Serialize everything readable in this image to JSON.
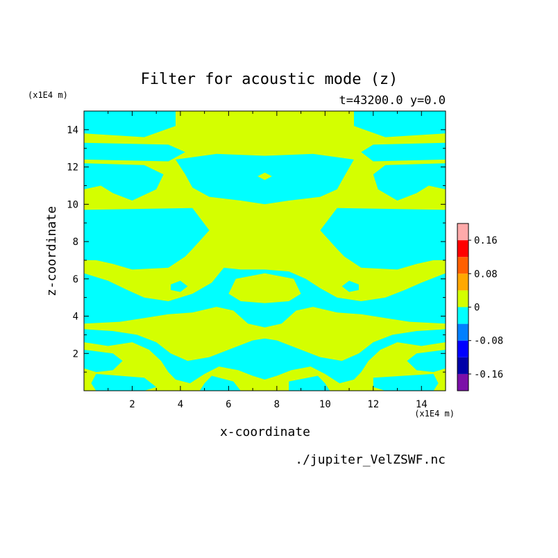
{
  "chart_data": {
    "type": "heatmap",
    "title": "Filter for acoustic mode (z)",
    "subtitle": "t=43200.0 y=0.0",
    "xlabel": "x-coordinate",
    "ylabel": "z-coordinate",
    "x_unit": "(x1E4 m)",
    "y_unit": "(x1E4 m)",
    "footer": "./jupiter_VelZSWF.nc",
    "xlim": [
      0.0,
      15.0
    ],
    "ylim": [
      0.0,
      15.0
    ],
    "x_ticks": [
      "2",
      "4",
      "6",
      "8",
      "10",
      "12",
      "14"
    ],
    "x_tick_values": [
      2,
      4,
      6,
      8,
      10,
      12,
      14
    ],
    "y_ticks": [
      "2",
      "4",
      "6",
      "8",
      "10",
      "12",
      "14"
    ],
    "y_tick_values": [
      2,
      4,
      6,
      8,
      10,
      12,
      14
    ],
    "colorbar": {
      "levels": [
        -0.2,
        -0.16,
        -0.12,
        -0.08,
        -0.04,
        0,
        0.04,
        0.08,
        0.12,
        0.16,
        0.2
      ],
      "colors": [
        "#7b0fa8",
        "#0000a8",
        "#0000ff",
        "#0080ff",
        "#00ffff",
        "#d4ff00",
        "#ffa800",
        "#ff6000",
        "#ff0000",
        "#ffaaaa"
      ],
      "tick_labels": [
        "0.16",
        "0.08",
        "0",
        "-0.08",
        "-0.16"
      ],
      "tick_values": [
        0.16,
        0.08,
        0,
        -0.08,
        -0.16
      ]
    },
    "field_colors": {
      "negative": "#00ffff",
      "positive": "#d4ff00"
    },
    "regions": [
      {
        "sign": "negative",
        "points": [
          [
            0,
            15
          ],
          [
            3.8,
            15
          ],
          [
            3.8,
            14.2
          ],
          [
            2.5,
            13.6
          ],
          [
            0,
            13.8
          ]
        ]
      },
      {
        "sign": "negative",
        "points": [
          [
            11.2,
            15
          ],
          [
            15,
            15
          ],
          [
            15,
            13.8
          ],
          [
            12.5,
            13.6
          ],
          [
            11.2,
            14.2
          ]
        ]
      },
      {
        "sign": "negative",
        "points": [
          [
            0,
            13.3
          ],
          [
            3.5,
            13.2
          ],
          [
            4.2,
            12.8
          ],
          [
            3.5,
            12.3
          ],
          [
            0,
            12.4
          ]
        ]
      },
      {
        "sign": "negative",
        "points": [
          [
            11.5,
            12.8
          ],
          [
            12,
            13.2
          ],
          [
            15,
            13.3
          ],
          [
            15,
            12.4
          ],
          [
            12,
            12.3
          ]
        ]
      },
      {
        "sign": "negative",
        "points": [
          [
            3.8,
            12.4
          ],
          [
            5.5,
            12.7
          ],
          [
            7.5,
            12.6
          ],
          [
            9.5,
            12.7
          ],
          [
            11.2,
            12.4
          ],
          [
            10.8,
            11.5
          ],
          [
            10.5,
            10.8
          ],
          [
            9.8,
            10.4
          ],
          [
            8.5,
            10.2
          ],
          [
            7.5,
            10.0
          ],
          [
            6.5,
            10.2
          ],
          [
            5.2,
            10.4
          ],
          [
            4.5,
            10.9
          ],
          [
            4.2,
            11.6
          ]
        ]
      },
      {
        "sign": "negative",
        "points": [
          [
            0,
            12.2
          ],
          [
            2.5,
            12.1
          ],
          [
            3.3,
            11.6
          ],
          [
            3.0,
            10.8
          ],
          [
            2.0,
            10.2
          ],
          [
            1.2,
            10.6
          ],
          [
            0.7,
            11.0
          ],
          [
            0,
            10.8
          ]
        ]
      },
      {
        "sign": "negative",
        "points": [
          [
            12.0,
            11.6
          ],
          [
            12.5,
            12.1
          ],
          [
            15,
            12.2
          ],
          [
            15,
            10.8
          ],
          [
            14.3,
            11.0
          ],
          [
            13.8,
            10.6
          ],
          [
            13.0,
            10.2
          ],
          [
            12.2,
            10.8
          ]
        ]
      },
      {
        "sign": "negative",
        "points": [
          [
            0,
            9.7
          ],
          [
            4.5,
            9.8
          ],
          [
            5.2,
            8.6
          ],
          [
            4.5,
            7.6
          ],
          [
            4.2,
            7.2
          ],
          [
            3.5,
            6.6
          ],
          [
            2.0,
            6.5
          ],
          [
            1.2,
            6.8
          ],
          [
            0.5,
            7.0
          ],
          [
            0,
            7.0
          ]
        ]
      },
      {
        "sign": "negative",
        "points": [
          [
            10.5,
            9.8
          ],
          [
            15,
            9.7
          ],
          [
            15,
            7.0
          ],
          [
            14.5,
            7.0
          ],
          [
            13.8,
            6.8
          ],
          [
            13.0,
            6.5
          ],
          [
            11.5,
            6.6
          ],
          [
            10.8,
            7.2
          ],
          [
            10.5,
            7.6
          ],
          [
            9.8,
            8.6
          ]
        ]
      },
      {
        "sign": "negative",
        "points": [
          [
            0,
            6.3
          ],
          [
            1.0,
            5.9
          ],
          [
            1.8,
            5.4
          ],
          [
            2.5,
            5.0
          ],
          [
            3.5,
            4.8
          ],
          [
            4.5,
            5.2
          ],
          [
            5.3,
            5.8
          ],
          [
            5.8,
            6.6
          ],
          [
            6.5,
            6.5
          ],
          [
            7.5,
            6.5
          ],
          [
            8.5,
            6.4
          ],
          [
            9.2,
            6.0
          ],
          [
            9.8,
            5.5
          ],
          [
            10.5,
            5.0
          ],
          [
            11.5,
            4.8
          ],
          [
            12.5,
            5.0
          ],
          [
            13.3,
            5.4
          ],
          [
            14.0,
            5.8
          ],
          [
            15,
            6.3
          ],
          [
            15,
            3.6
          ],
          [
            13.5,
            3.7
          ],
          [
            12.5,
            3.9
          ],
          [
            11.5,
            4.1
          ],
          [
            10.5,
            4.2
          ],
          [
            9.5,
            4.5
          ],
          [
            8.8,
            4.3
          ],
          [
            8.2,
            3.6
          ],
          [
            7.5,
            3.4
          ],
          [
            6.8,
            3.6
          ],
          [
            6.2,
            4.3
          ],
          [
            5.5,
            4.5
          ],
          [
            4.5,
            4.2
          ],
          [
            3.5,
            4.1
          ],
          [
            2.5,
            3.9
          ],
          [
            1.5,
            3.7
          ],
          [
            0,
            3.6
          ]
        ]
      },
      {
        "sign": "positive",
        "points": [
          [
            6.3,
            6.0
          ],
          [
            7.5,
            6.3
          ],
          [
            8.7,
            6.0
          ],
          [
            9.0,
            5.2
          ],
          [
            8.5,
            4.8
          ],
          [
            7.5,
            4.7
          ],
          [
            6.5,
            4.8
          ],
          [
            6.0,
            5.2
          ]
        ]
      },
      {
        "sign": "negative",
        "points": [
          [
            0,
            3.3
          ],
          [
            1.2,
            3.2
          ],
          [
            2.2,
            3.0
          ],
          [
            3.0,
            2.6
          ],
          [
            3.6,
            2.0
          ],
          [
            4.3,
            1.6
          ],
          [
            5.2,
            1.8
          ],
          [
            6.0,
            2.2
          ],
          [
            7.0,
            2.7
          ],
          [
            7.5,
            2.8
          ],
          [
            8.0,
            2.7
          ],
          [
            9.0,
            2.2
          ],
          [
            9.8,
            1.8
          ],
          [
            10.7,
            1.6
          ],
          [
            11.4,
            2.0
          ],
          [
            12.0,
            2.6
          ],
          [
            12.8,
            3.0
          ],
          [
            13.8,
            3.2
          ],
          [
            15,
            3.3
          ],
          [
            15,
            2.6
          ],
          [
            14.0,
            2.4
          ],
          [
            13.0,
            2.6
          ],
          [
            12.3,
            2.2
          ],
          [
            11.8,
            1.6
          ],
          [
            11.5,
            1.0
          ],
          [
            11.2,
            0.6
          ],
          [
            10.6,
            0.4
          ],
          [
            10.0,
            0.9
          ],
          [
            9.4,
            1.3
          ],
          [
            8.6,
            1.1
          ],
          [
            8.0,
            0.8
          ],
          [
            7.5,
            0.6
          ],
          [
            7.0,
            0.8
          ],
          [
            6.4,
            1.1
          ],
          [
            5.6,
            1.3
          ],
          [
            5.0,
            0.9
          ],
          [
            4.4,
            0.4
          ],
          [
            3.8,
            0.6
          ],
          [
            3.5,
            1.0
          ],
          [
            3.2,
            1.6
          ],
          [
            2.7,
            2.2
          ],
          [
            2.0,
            2.6
          ],
          [
            1.0,
            2.4
          ],
          [
            0,
            2.6
          ]
        ]
      },
      {
        "sign": "negative",
        "points": [
          [
            0,
            2.2
          ],
          [
            1.2,
            2.0
          ],
          [
            1.6,
            1.6
          ],
          [
            1.2,
            1.1
          ],
          [
            0.5,
            1.0
          ],
          [
            0,
            1.2
          ]
        ]
      },
      {
        "sign": "negative",
        "points": [
          [
            13.4,
            1.6
          ],
          [
            13.8,
            2.0
          ],
          [
            15,
            2.2
          ],
          [
            15,
            1.2
          ],
          [
            14.5,
            1.0
          ],
          [
            13.8,
            1.1
          ]
        ]
      },
      {
        "sign": "negative",
        "points": [
          [
            0.5,
            0.9
          ],
          [
            2.5,
            0.7
          ],
          [
            3.0,
            0.2
          ],
          [
            2.5,
            0
          ],
          [
            0.5,
            0
          ],
          [
            0.3,
            0.4
          ]
        ]
      },
      {
        "sign": "negative",
        "points": [
          [
            12.0,
            0.7
          ],
          [
            14.5,
            0.9
          ],
          [
            14.7,
            0.4
          ],
          [
            14.5,
            0
          ],
          [
            12.5,
            0
          ],
          [
            12.0,
            0.2
          ]
        ]
      },
      {
        "sign": "negative",
        "points": [
          [
            5.3,
            0.8
          ],
          [
            6.2,
            0.5
          ],
          [
            6.5,
            0
          ],
          [
            4.8,
            0
          ],
          [
            5.0,
            0.4
          ]
        ]
      },
      {
        "sign": "negative",
        "points": [
          [
            8.5,
            0.5
          ],
          [
            9.7,
            0.8
          ],
          [
            10.0,
            0.4
          ],
          [
            10.2,
            0
          ],
          [
            8.5,
            0
          ]
        ]
      },
      {
        "sign": "negative",
        "points": [
          [
            3.6,
            5.7
          ],
          [
            4.0,
            5.9
          ],
          [
            4.3,
            5.6
          ],
          [
            4.0,
            5.3
          ],
          [
            3.6,
            5.4
          ]
        ]
      },
      {
        "sign": "negative",
        "points": [
          [
            10.7,
            5.6
          ],
          [
            11.0,
            5.9
          ],
          [
            11.4,
            5.7
          ],
          [
            11.4,
            5.4
          ],
          [
            11.0,
            5.3
          ]
        ]
      },
      {
        "sign": "positive",
        "points": [
          [
            7.2,
            11.5
          ],
          [
            7.5,
            11.7
          ],
          [
            7.8,
            11.5
          ],
          [
            7.5,
            11.3
          ]
        ]
      }
    ]
  }
}
